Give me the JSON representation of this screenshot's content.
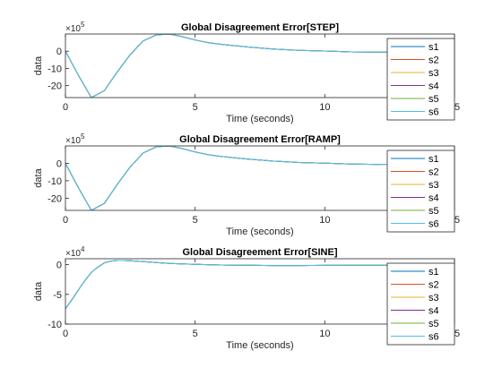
{
  "chart_data": [
    {
      "type": "line",
      "title": "Global Disagreement Error[STEP]",
      "xlabel": "Time (seconds)",
      "ylabel": "data",
      "exponent": {
        "base": "×10",
        "power": "5"
      },
      "xlim": [
        0,
        15
      ],
      "ylim": [
        -27,
        10
      ],
      "xticks": [
        0,
        5,
        10,
        15
      ],
      "yticks": [
        -20,
        -10,
        0
      ],
      "grid": false,
      "legend_position": "right",
      "x": [
        0,
        0.5,
        1,
        1.5,
        2,
        2.5,
        3,
        3.5,
        4,
        4.5,
        5,
        5.5,
        6,
        7,
        8,
        9,
        10,
        11,
        12,
        13,
        14,
        15
      ],
      "series": [
        {
          "name": "s1",
          "values": [
            0,
            -14,
            -27,
            -23,
            -12,
            -2,
            6,
            9.5,
            10,
            8.5,
            6.5,
            5,
            4,
            2.5,
            1.3,
            0.5,
            0.1,
            -0.4,
            -0.6,
            -0.5,
            -0.3,
            -0.2
          ]
        },
        {
          "name": "s2",
          "values": [
            0,
            -14,
            -27,
            -23,
            -12,
            -2,
            6,
            9.5,
            10,
            8.5,
            6.5,
            5,
            4,
            2.5,
            1.3,
            0.5,
            0.1,
            -0.4,
            -0.6,
            -0.5,
            -0.3,
            -0.2
          ]
        },
        {
          "name": "s3",
          "values": [
            0,
            -14,
            -27,
            -23,
            -12,
            -2,
            6,
            9.5,
            10,
            8.5,
            6.5,
            5,
            4,
            2.5,
            1.3,
            0.5,
            0.1,
            -0.4,
            -0.6,
            -0.5,
            -0.3,
            -0.2
          ]
        },
        {
          "name": "s4",
          "values": [
            0,
            -14,
            -27,
            -23,
            -12,
            -2,
            6,
            9.5,
            10,
            8.5,
            6.5,
            5,
            4,
            2.5,
            1.3,
            0.5,
            0.1,
            -0.4,
            -0.6,
            -0.5,
            -0.3,
            -0.2
          ]
        },
        {
          "name": "s5",
          "values": [
            0,
            -14,
            -27,
            -23,
            -12,
            -2,
            6,
            9.5,
            10,
            8.5,
            6.5,
            5,
            4,
            2.5,
            1.3,
            0.5,
            0.1,
            -0.4,
            -0.6,
            -0.5,
            -0.3,
            -0.2
          ]
        },
        {
          "name": "s6",
          "values": [
            0,
            -14,
            -27,
            -23,
            -12,
            -2,
            6,
            9.5,
            10,
            8.5,
            6.5,
            5,
            4,
            2.5,
            1.3,
            0.5,
            0.1,
            -0.4,
            -0.6,
            -0.5,
            -0.3,
            -0.2
          ]
        }
      ]
    },
    {
      "type": "line",
      "title": "Global Disagreement Error[RAMP]",
      "xlabel": "Time (seconds)",
      "ylabel": "data",
      "exponent": {
        "base": "×10",
        "power": "5"
      },
      "xlim": [
        0,
        15
      ],
      "ylim": [
        -27,
        10
      ],
      "xticks": [
        0,
        5,
        10,
        15
      ],
      "yticks": [
        -20,
        -10,
        0
      ],
      "grid": false,
      "legend_position": "right",
      "x": [
        0,
        0.5,
        1,
        1.5,
        2,
        2.5,
        3,
        3.5,
        4,
        4.5,
        5,
        5.5,
        6,
        7,
        8,
        9,
        10,
        11,
        12,
        13,
        14,
        15
      ],
      "series": [
        {
          "name": "s1",
          "values": [
            0,
            -14,
            -27,
            -23,
            -12,
            -2,
            6,
            9.5,
            10,
            8.5,
            6.5,
            5,
            4,
            2.5,
            1.3,
            0.5,
            0.1,
            -0.4,
            -0.6,
            -0.5,
            -0.3,
            -0.2
          ]
        },
        {
          "name": "s2",
          "values": [
            0,
            -14,
            -27,
            -23,
            -12,
            -2,
            6,
            9.5,
            10,
            8.5,
            6.5,
            5,
            4,
            2.5,
            1.3,
            0.5,
            0.1,
            -0.4,
            -0.6,
            -0.5,
            -0.3,
            -0.2
          ]
        },
        {
          "name": "s3",
          "values": [
            0,
            -14,
            -27,
            -23,
            -12,
            -2,
            6,
            9.5,
            10,
            8.5,
            6.5,
            5,
            4,
            2.5,
            1.3,
            0.5,
            0.1,
            -0.4,
            -0.6,
            -0.5,
            -0.3,
            -0.2
          ]
        },
        {
          "name": "s4",
          "values": [
            0,
            -14,
            -27,
            -23,
            -12,
            -2,
            6,
            9.5,
            10,
            8.5,
            6.5,
            5,
            4,
            2.5,
            1.3,
            0.5,
            0.1,
            -0.4,
            -0.6,
            -0.5,
            -0.3,
            -0.2
          ]
        },
        {
          "name": "s5",
          "values": [
            0,
            -14,
            -27,
            -23,
            -12,
            -2,
            6,
            9.5,
            10,
            8.5,
            6.5,
            5,
            4,
            2.5,
            1.3,
            0.5,
            0.1,
            -0.4,
            -0.6,
            -0.5,
            -0.3,
            -0.2
          ]
        },
        {
          "name": "s6",
          "values": [
            0,
            -14,
            -27,
            -23,
            -12,
            -2,
            6,
            9.5,
            10,
            8.5,
            6.5,
            5,
            4,
            2.5,
            1.3,
            0.5,
            0.1,
            -0.4,
            -0.6,
            -0.5,
            -0.3,
            -0.2
          ]
        }
      ]
    },
    {
      "type": "line",
      "title": "Global Disagreement Error[SINE]",
      "xlabel": "Time (seconds)",
      "ylabel": "data",
      "exponent": {
        "base": "×10",
        "power": "4"
      },
      "xlim": [
        0,
        15
      ],
      "ylim": [
        -10,
        1
      ],
      "xticks": [
        0,
        5,
        10,
        15
      ],
      "yticks": [
        -10,
        -5,
        0
      ],
      "grid": false,
      "legend_position": "right",
      "x": [
        0,
        0.2,
        0.4,
        0.6,
        0.8,
        1,
        1.25,
        1.5,
        1.75,
        2,
        2.25,
        2.5,
        3,
        3.5,
        4,
        5,
        6,
        7,
        8,
        9,
        10,
        11,
        12,
        13,
        14,
        15
      ],
      "series": [
        {
          "name": "s1",
          "values": [
            -7.4,
            -6.2,
            -4.9,
            -3.6,
            -2.4,
            -1.3,
            -0.4,
            0.3,
            0.6,
            0.7,
            0.7,
            0.65,
            0.5,
            0.35,
            0.2,
            0.05,
            -0.05,
            -0.1,
            -0.15,
            -0.15,
            -0.12,
            -0.1,
            -0.08,
            -0.05,
            -0.03,
            -0.02
          ]
        },
        {
          "name": "s2",
          "values": [
            -7.4,
            -6.2,
            -4.9,
            -3.6,
            -2.4,
            -1.3,
            -0.4,
            0.3,
            0.6,
            0.7,
            0.7,
            0.65,
            0.5,
            0.35,
            0.2,
            0.05,
            -0.05,
            -0.1,
            -0.15,
            -0.15,
            -0.12,
            -0.1,
            -0.08,
            -0.05,
            -0.03,
            -0.02
          ]
        },
        {
          "name": "s3",
          "values": [
            -7.4,
            -6.2,
            -4.9,
            -3.6,
            -2.4,
            -1.3,
            -0.4,
            0.3,
            0.6,
            0.7,
            0.7,
            0.65,
            0.5,
            0.35,
            0.2,
            0.05,
            -0.05,
            -0.1,
            -0.15,
            -0.15,
            -0.12,
            -0.1,
            -0.08,
            -0.05,
            -0.03,
            -0.02
          ]
        },
        {
          "name": "s4",
          "values": [
            -7.4,
            -6.2,
            -4.9,
            -3.6,
            -2.4,
            -1.3,
            -0.4,
            0.3,
            0.6,
            0.7,
            0.7,
            0.65,
            0.5,
            0.35,
            0.2,
            0.05,
            -0.05,
            -0.1,
            -0.15,
            -0.15,
            -0.12,
            -0.1,
            -0.08,
            -0.05,
            -0.03,
            -0.02
          ]
        },
        {
          "name": "s5",
          "values": [
            -7.4,
            -6.2,
            -4.9,
            -3.6,
            -2.4,
            -1.3,
            -0.4,
            0.3,
            0.6,
            0.7,
            0.7,
            0.65,
            0.5,
            0.35,
            0.2,
            0.05,
            -0.05,
            -0.1,
            -0.15,
            -0.15,
            -0.12,
            -0.1,
            -0.08,
            -0.05,
            -0.03,
            -0.02
          ]
        },
        {
          "name": "s6",
          "values": [
            -7.4,
            -6.2,
            -4.9,
            -3.6,
            -2.4,
            -1.3,
            -0.4,
            0.3,
            0.6,
            0.7,
            0.7,
            0.65,
            0.5,
            0.35,
            0.2,
            0.05,
            -0.05,
            -0.1,
            -0.15,
            -0.15,
            -0.12,
            -0.1,
            -0.08,
            -0.05,
            -0.03,
            -0.02
          ]
        }
      ]
    }
  ],
  "series_colors": [
    "#0072BD",
    "#D95319",
    "#EDB120",
    "#7E2F8E",
    "#77AC30",
    "#4DBEEE"
  ]
}
